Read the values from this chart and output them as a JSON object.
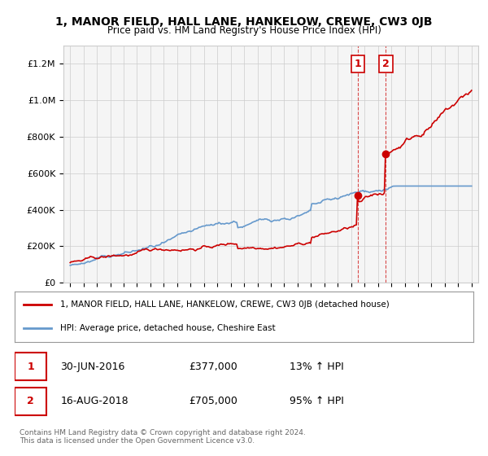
{
  "title": "1, MANOR FIELD, HALL LANE, HANKELOW, CREWE, CW3 0JB",
  "subtitle": "Price paid vs. HM Land Registry's House Price Index (HPI)",
  "legend_label_red": "1, MANOR FIELD, HALL LANE, HANKELOW, CREWE, CW3 0JB (detached house)",
  "legend_label_blue": "HPI: Average price, detached house, Cheshire East",
  "annotation1_label": "1",
  "annotation1_date": "30-JUN-2016",
  "annotation1_price": "£377,000",
  "annotation1_hpi": "13% ↑ HPI",
  "annotation2_label": "2",
  "annotation2_date": "16-AUG-2018",
  "annotation2_price": "£705,000",
  "annotation2_hpi": "95% ↑ HPI",
  "footer": "Contains HM Land Registry data © Crown copyright and database right 2024.\nThis data is licensed under the Open Government Licence v3.0.",
  "ylim": [
    0,
    1300000
  ],
  "yticks": [
    0,
    200000,
    400000,
    600000,
    800000,
    1000000,
    1200000
  ],
  "red_color": "#cc0000",
  "blue_color": "#6699cc",
  "dashed_color": "#cc0000",
  "background_chart": "#f5f5f5",
  "background_fig": "#ffffff",
  "grid_color": "#cccccc"
}
